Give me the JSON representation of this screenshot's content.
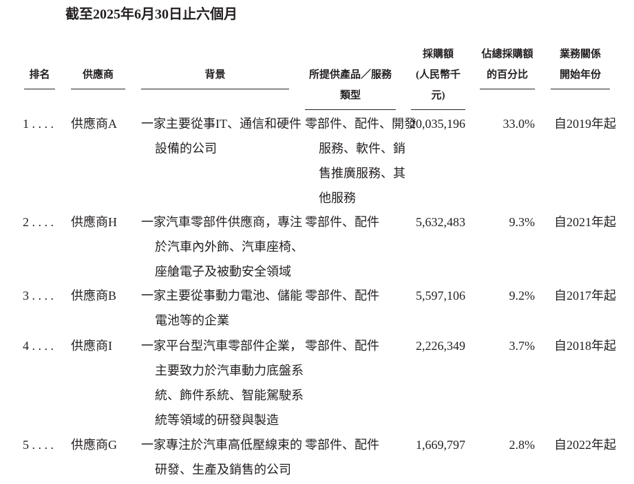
{
  "title": "截至2025年6月30日止六個月",
  "headers": [
    {
      "lines": [
        "",
        "排名"
      ]
    },
    {
      "lines": [
        "",
        "供應商"
      ]
    },
    {
      "lines": [
        "",
        "背景"
      ]
    },
    {
      "lines": [
        "",
        "所提供產品／服務類型"
      ]
    },
    {
      "lines": [
        "採購額",
        "(人民幣千元)"
      ]
    },
    {
      "lines": [
        "佔總採購額",
        "的百分比"
      ]
    },
    {
      "lines": [
        "業務關係",
        "開始年份"
      ]
    }
  ],
  "rows": [
    {
      "rank": "1 . . . .",
      "supplier": "供應商A",
      "background": [
        "一家主要從事IT、通信和硬件",
        "設備的公司"
      ],
      "products": [
        "零部件、配件、開發",
        "服務、軟件、銷",
        "售推廣服務、其",
        "他服務"
      ],
      "amount": "20,035,196",
      "pct": "33.0%",
      "since": "自2019年起"
    },
    {
      "rank": "2 . . . .",
      "supplier": "供應商H",
      "background": [
        "一家汽車零部件供應商，專注",
        "於汽車內外飾、汽車座椅、",
        "座艙電子及被動安全領域"
      ],
      "products": [
        "零部件、配件"
      ],
      "amount": "5,632,483",
      "pct": "9.3%",
      "since": "自2021年起"
    },
    {
      "rank": "3 . . . .",
      "supplier": "供應商B",
      "background": [
        "一家主要從事動力電池、儲能",
        "電池等的企業"
      ],
      "products": [
        "零部件、配件"
      ],
      "amount": "5,597,106",
      "pct": "9.2%",
      "since": "自2017年起"
    },
    {
      "rank": "4 . . . .",
      "supplier": "供應商I",
      "background": [
        "一家平台型汽車零部件企業，",
        "主要致力於汽車動力底盤系",
        "統、飾件系統、智能駕駛系",
        "統等領域的研發與製造"
      ],
      "products": [
        "零部件、配件"
      ],
      "amount": "2,226,349",
      "pct": "3.7%",
      "since": "自2018年起"
    },
    {
      "rank": "5 . . . .",
      "supplier": "供應商G",
      "background": [
        "一家專注於汽車高低壓線束的",
        "研發、生產及銷售的公司"
      ],
      "products": [
        "零部件、配件"
      ],
      "amount": "1,669,797",
      "pct": "2.8%",
      "since": "自2022年起"
    }
  ]
}
